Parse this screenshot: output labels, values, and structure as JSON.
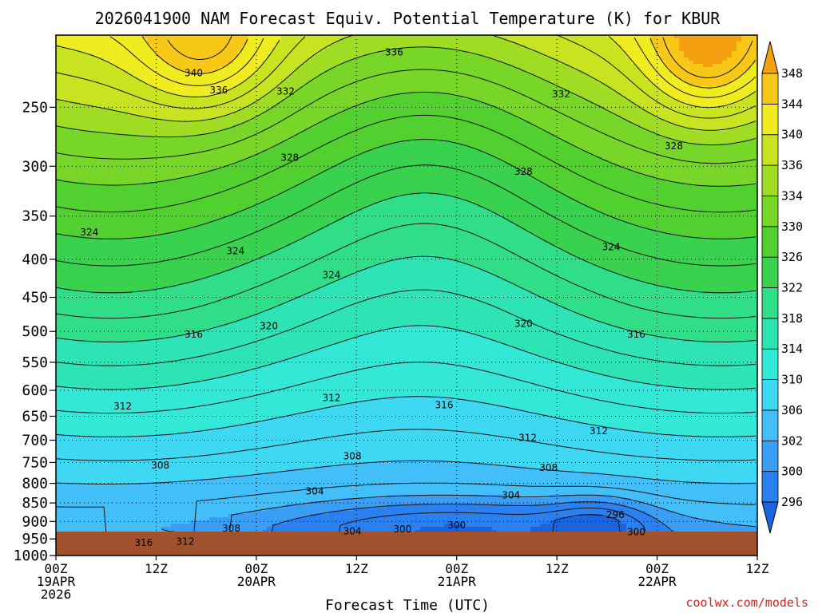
{
  "chart_data": {
    "type": "heatmap",
    "title": "2026041900 NAM Forecast Equiv. Potential Temperature (K) for KBUR",
    "xlabel": "Forecast Time (UTC)",
    "ylabel": "",
    "credit": "coolwx.com/models",
    "x_ticks": [
      {
        "hours": 0,
        "line1": "00Z",
        "line2": "19APR",
        "line3": "2026"
      },
      {
        "hours": 12,
        "line1": "12Z",
        "line2": "",
        "line3": ""
      },
      {
        "hours": 24,
        "line1": "00Z",
        "line2": "20APR",
        "line3": ""
      },
      {
        "hours": 36,
        "line1": "12Z",
        "line2": "",
        "line3": ""
      },
      {
        "hours": 48,
        "line1": "00Z",
        "line2": "21APR",
        "line3": ""
      },
      {
        "hours": 60,
        "line1": "12Z",
        "line2": "",
        "line3": ""
      },
      {
        "hours": 72,
        "line1": "00Z",
        "line2": "22APR",
        "line3": ""
      },
      {
        "hours": 84,
        "line1": "12Z",
        "line2": "",
        "line3": ""
      }
    ],
    "xlim_hours": [
      0,
      84
    ],
    "y_ticks": [
      250,
      300,
      350,
      400,
      450,
      500,
      550,
      600,
      650,
      700,
      750,
      800,
      850,
      900,
      950,
      1000
    ],
    "ylim_hpa": [
      200,
      1000
    ],
    "y_scale": "log-pressure",
    "surface_pressure_hpa": 975,
    "grid": true,
    "colorbar": {
      "levels": [
        296,
        300,
        302,
        306,
        310,
        314,
        318,
        322,
        326,
        330,
        334,
        336,
        340,
        344,
        348
      ],
      "colors": [
        "#1a64e0",
        "#2a80ee",
        "#3a9ef4",
        "#42bef8",
        "#3ed8f2",
        "#34e8d8",
        "#2ee4b4",
        "#30de88",
        "#38d24e",
        "#52d030",
        "#78d628",
        "#a0dc24",
        "#c8e420",
        "#f0ec20",
        "#f8c818",
        "#f4a010"
      ]
    },
    "contour_labels": [
      {
        "text": "336",
        "hours": 40.5,
        "hpa": 211
      },
      {
        "text": "340",
        "hours": 16.5,
        "hpa": 225
      },
      {
        "text": "336",
        "hours": 19.5,
        "hpa": 237
      },
      {
        "text": "332",
        "hours": 27.5,
        "hpa": 238
      },
      {
        "text": "332",
        "hours": 60.5,
        "hpa": 240
      },
      {
        "text": "328",
        "hours": 28.0,
        "hpa": 292
      },
      {
        "text": "328",
        "hours": 74.0,
        "hpa": 282
      },
      {
        "text": "328",
        "hours": 56.0,
        "hpa": 305
      },
      {
        "text": "324",
        "hours": 4.0,
        "hpa": 368
      },
      {
        "text": "324",
        "hours": 21.5,
        "hpa": 390
      },
      {
        "text": "324",
        "hours": 33.0,
        "hpa": 420
      },
      {
        "text": "324",
        "hours": 66.5,
        "hpa": 385
      },
      {
        "text": "320",
        "hours": 25.5,
        "hpa": 492
      },
      {
        "text": "320",
        "hours": 56.0,
        "hpa": 488
      },
      {
        "text": "316",
        "hours": 16.5,
        "hpa": 505
      },
      {
        "text": "316",
        "hours": 69.5,
        "hpa": 505
      },
      {
        "text": "316",
        "hours": 46.5,
        "hpa": 628
      },
      {
        "text": "312",
        "hours": 8.0,
        "hpa": 630
      },
      {
        "text": "312",
        "hours": 33.0,
        "hpa": 614
      },
      {
        "text": "312",
        "hours": 56.5,
        "hpa": 695
      },
      {
        "text": "312",
        "hours": 65.0,
        "hpa": 680
      },
      {
        "text": "308",
        "hours": 12.5,
        "hpa": 757
      },
      {
        "text": "308",
        "hours": 35.5,
        "hpa": 735
      },
      {
        "text": "308",
        "hours": 59.0,
        "hpa": 762
      },
      {
        "text": "304",
        "hours": 31.0,
        "hpa": 820
      },
      {
        "text": "304",
        "hours": 54.5,
        "hpa": 830
      },
      {
        "text": "296",
        "hours": 67.0,
        "hpa": 882
      },
      {
        "text": "308",
        "hours": 21.0,
        "hpa": 920
      },
      {
        "text": "304",
        "hours": 35.5,
        "hpa": 928
      },
      {
        "text": "300",
        "hours": 41.5,
        "hpa": 922
      },
      {
        "text": "300",
        "hours": 48.0,
        "hpa": 910
      },
      {
        "text": "300",
        "hours": 69.5,
        "hpa": 930
      },
      {
        "text": "316",
        "hours": 10.5,
        "hpa": 961
      },
      {
        "text": "312",
        "hours": 15.5,
        "hpa": 958
      }
    ]
  }
}
